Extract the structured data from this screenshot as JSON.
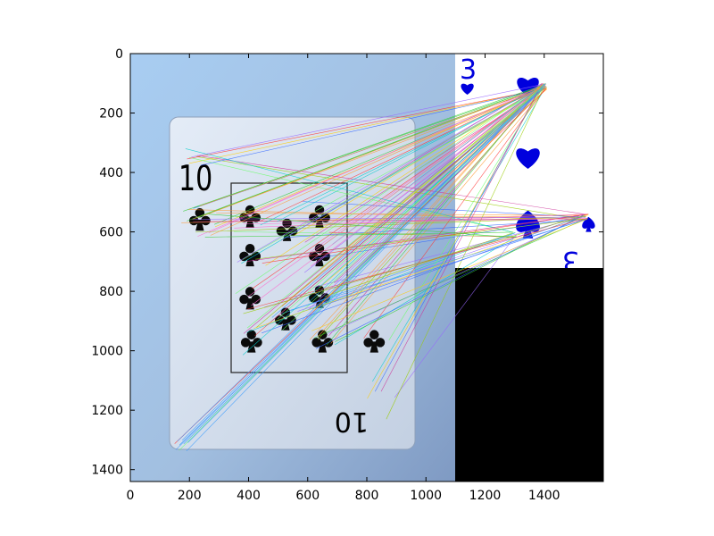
{
  "chart_data": {
    "type": "image",
    "title": "",
    "xlabel": "",
    "ylabel": "",
    "xlim": [
      0,
      1600
    ],
    "ylim": [
      1440,
      0
    ],
    "xticks": [
      0,
      200,
      400,
      600,
      800,
      1000,
      1200,
      1400
    ],
    "yticks": [
      0,
      200,
      400,
      600,
      800,
      1000,
      1200,
      1400
    ],
    "grid": false,
    "legend": "none",
    "panels": [
      {
        "name": "scene-photo",
        "x_range": [
          0,
          1100
        ],
        "y_range": [
          0,
          1440
        ],
        "content": "photograph of a playing card: ten of clubs",
        "card_rank": "10",
        "card_suit": "clubs",
        "pip_count": 10,
        "detected_box": {
          "x": [
            340,
            730
          ],
          "y": [
            435,
            1080
          ]
        }
      },
      {
        "name": "template-card",
        "x_range": [
          1100,
          1600
        ],
        "y_range": [
          0,
          725
        ],
        "content": "card template: three of hearts/spades (blue)",
        "card_rank": "3",
        "card_color": "#0000dd"
      },
      {
        "name": "padding",
        "x_range": [
          1100,
          1600
        ],
        "y_range": [
          725,
          1440
        ],
        "content": "black fill"
      }
    ],
    "match_lines": {
      "count": 120,
      "description": "feature matches drawn as thin multicolored lines from scene keypoints to template keypoints",
      "template_targets": [
        [
          1400,
          110
        ],
        [
          1540,
          550
        ],
        [
          1300,
          610
        ]
      ],
      "scene_regions": [
        {
          "x": [
            175,
            240
          ],
          "y": [
            270,
            440
          ]
        },
        {
          "x": [
            170,
            300
          ],
          "y": [
            510,
            620
          ]
        },
        {
          "x": [
            350,
            460
          ],
          "y": [
            490,
            620
          ]
        },
        {
          "x": [
            480,
            580
          ],
          "y": [
            550,
            650
          ]
        },
        {
          "x": [
            580,
            700
          ],
          "y": [
            490,
            620
          ]
        },
        {
          "x": [
            350,
            460
          ],
          "y": [
            640,
            730
          ]
        },
        {
          "x": [
            580,
            700
          ],
          "y": [
            630,
            740
          ]
        },
        {
          "x": [
            350,
            460
          ],
          "y": [
            780,
            880
          ]
        },
        {
          "x": [
            580,
            700
          ],
          "y": [
            770,
            880
          ]
        },
        {
          "x": [
            470,
            580
          ],
          "y": [
            840,
            960
          ]
        },
        {
          "x": [
            370,
            450
          ],
          "y": [
            920,
            1030
          ]
        },
        {
          "x": [
            600,
            700
          ],
          "y": [
            920,
            1030
          ]
        },
        {
          "x": [
            770,
            880
          ],
          "y": [
            920,
            1030
          ]
        },
        {
          "x": [
            790,
            900
          ],
          "y": [
            1100,
            1250
          ]
        },
        {
          "x": [
            150,
            200
          ],
          "y": [
            1300,
            1340
          ]
        }
      ]
    }
  },
  "colors": {
    "photo_background": "#a9c8ea",
    "card_face": "#d8e2ef",
    "pip": "#0b0b0b",
    "template_pip": "#0000dd",
    "padding": "#000000"
  }
}
